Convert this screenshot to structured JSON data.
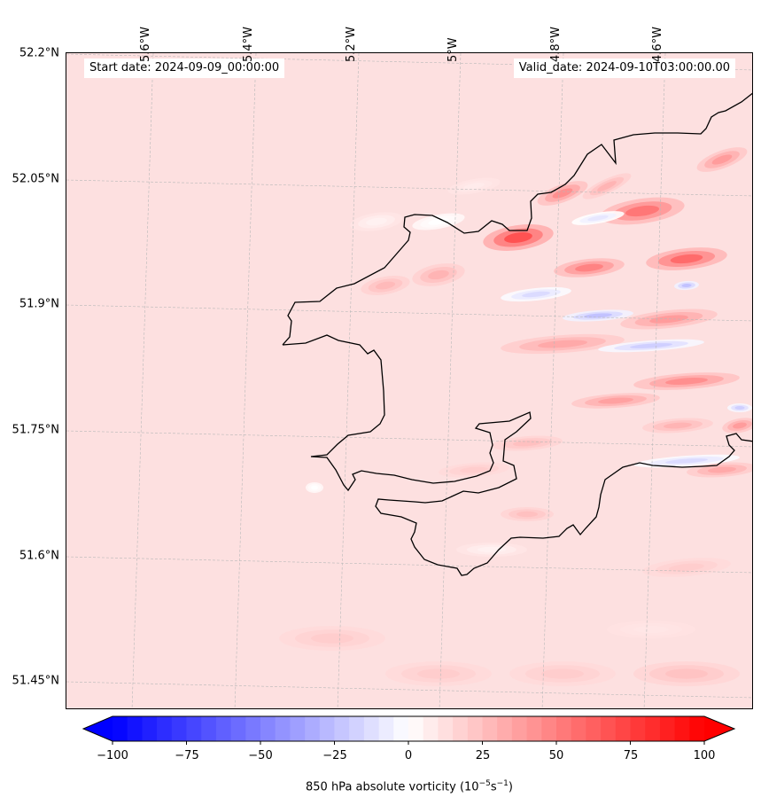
{
  "header": {
    "start_date": "Start date: 2024-09-09_00:00:00",
    "valid_date": "Valid_date: 2024-09-10T03:00:00.00"
  },
  "map": {
    "lat_labels": [
      "52.2°N",
      "52.05°N",
      "51.9°N",
      "51.75°N",
      "51.6°N",
      "51.45°N"
    ],
    "lon_labels": [
      "5.6°W",
      "5.4°W",
      "5.2°W",
      "5°W",
      "4.8°W",
      "4.6°W"
    ],
    "extent": {
      "lon_min": -5.75,
      "lon_max": -4.42,
      "lat_min": 51.42,
      "lat_max": 52.2
    },
    "background_color": "#fde0e0",
    "coast_color": "#000000"
  },
  "colorbar": {
    "ticks": [
      "−100",
      "−75",
      "−50",
      "−25",
      "0",
      "25",
      "50",
      "75",
      "100"
    ],
    "min": -100,
    "max": 100,
    "label_main": "850 hPa absolute vorticity (10",
    "label_exp1": "−5",
    "label_mid": "s",
    "label_exp2": "−1",
    "label_end": ")",
    "colormap": "bwr",
    "extend": "both"
  }
}
